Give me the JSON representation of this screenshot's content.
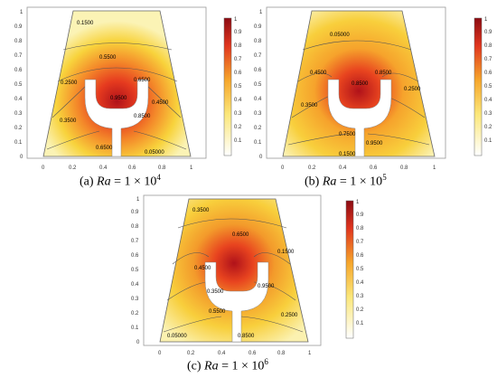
{
  "colorbar": {
    "ticks": [
      "1",
      "0.9",
      "0.8",
      "0.7",
      "0.6",
      "0.5",
      "0.4",
      "0.3",
      "0.2",
      "0.1"
    ]
  },
  "axes": {
    "x_ticks": [
      "0",
      "0.2",
      "0.4",
      "0.6",
      "0.8",
      "1"
    ],
    "y_ticks": [
      "0",
      "0.1",
      "0.2",
      "0.3",
      "0.4",
      "0.5",
      "0.6",
      "0.7",
      "0.8",
      "0.9",
      "1"
    ]
  },
  "panels": [
    {
      "id": "a",
      "caption": {
        "label": "(a)",
        "ra_name": "Ra",
        "eq": " = 1 × 10",
        "exp": "4"
      },
      "contours": [
        "0.1500",
        "0.5500",
        "0.2500",
        "0.6500",
        "0.8500",
        "0.4500",
        "0.9500",
        "0.3500",
        "0.6500",
        "0.8500",
        "0.05000"
      ]
    },
    {
      "id": "b",
      "caption": {
        "label": "(b)",
        "ra_name": "Ra",
        "eq": " = 1 × 10",
        "exp": "5"
      },
      "contours": [
        "0.05000",
        "0.4500",
        "0.8500",
        "0.8500",
        "0.2500",
        "0.3500",
        "0.7500",
        "0.9500",
        "0.1500"
      ]
    },
    {
      "id": "c",
      "caption": {
        "label": "(c)",
        "ra_name": "Ra",
        "eq": " = 1 × 10",
        "exp": "6"
      },
      "contours": [
        "0.3500",
        "0.6500",
        "0.1500",
        "0.4500",
        "0.9500",
        "0.7500",
        "0.3500",
        "0.5500",
        "0.2500",
        "0.05000",
        "0.8500"
      ]
    }
  ]
}
